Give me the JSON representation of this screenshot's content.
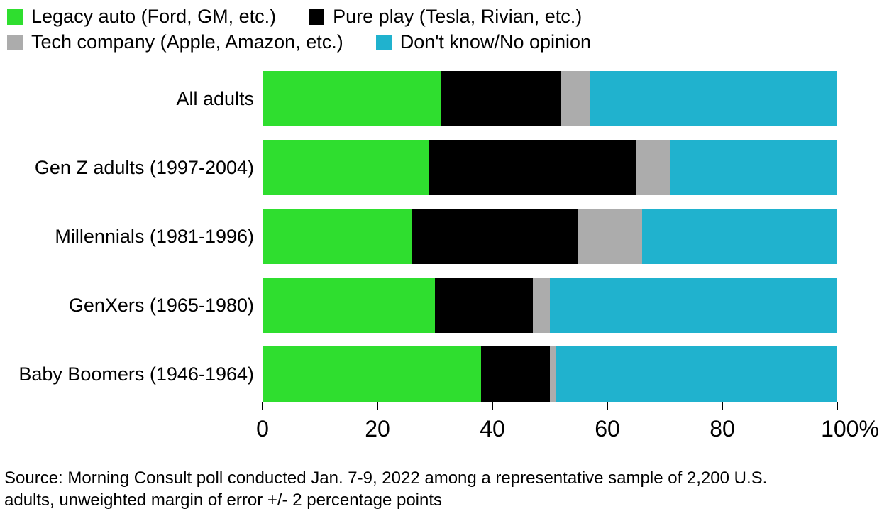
{
  "legend": {
    "items": [
      {
        "label": "Legacy auto (Ford, GM, etc.)",
        "color": "#2fde2f"
      },
      {
        "label": "Pure play (Tesla, Rivian, etc.)",
        "color": "#000000"
      },
      {
        "label": "Tech company (Apple, Amazon, etc.)",
        "color": "#acacac"
      },
      {
        "label": "Don't know/No opinion",
        "color": "#20b2ce"
      }
    ]
  },
  "chart_data": {
    "type": "bar",
    "orientation": "horizontal",
    "stacked": true,
    "title": "",
    "categories": [
      "All adults",
      "Gen Z adults (1997-2004)",
      "Millennials (1981-1996)",
      "GenXers (1965-1980)",
      "Baby Boomers (1946-1964)"
    ],
    "series": [
      {
        "name": "Legacy auto (Ford, GM, etc.)",
        "color": "#2fde2f",
        "values": [
          31,
          29,
          26,
          30,
          38
        ]
      },
      {
        "name": "Pure play (Tesla, Rivian, etc.)",
        "color": "#000000",
        "values": [
          21,
          36,
          29,
          17,
          12
        ]
      },
      {
        "name": "Tech company (Apple, Amazon, etc.)",
        "color": "#acacac",
        "values": [
          5,
          6,
          11,
          3,
          1
        ]
      },
      {
        "name": "Don't know/No opinion",
        "color": "#20b2ce",
        "values": [
          43,
          29,
          34,
          50,
          49
        ]
      }
    ],
    "xlabel": "",
    "ylabel": "",
    "xlim": [
      0,
      100
    ],
    "x_tick_values": [
      0,
      20,
      40,
      60,
      80,
      100
    ],
    "x_ticks": [
      "0",
      "20",
      "40",
      "60",
      "80",
      "100%"
    ],
    "grid": false,
    "legend_position": "top-left",
    "units": "percent"
  },
  "source": {
    "text": "Source: Morning Consult poll conducted Jan. 7-9, 2022 among a representative sample of 2,200 U.S.\nadults, unweighted margin of error +/- 2 percentage points"
  }
}
